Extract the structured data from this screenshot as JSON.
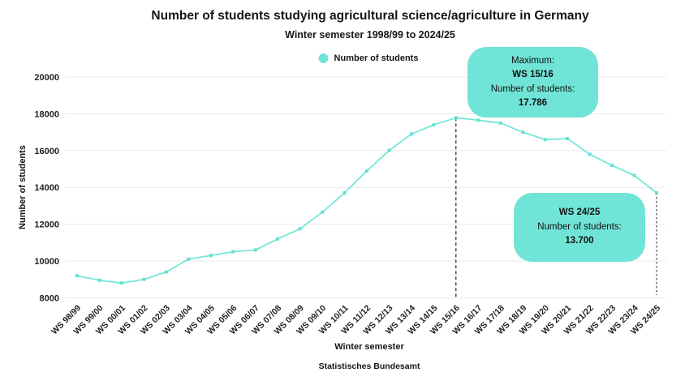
{
  "title": "Number of students studying agricultural science/agriculture in Germany",
  "subtitle": "Winter semester 1998/99 to 2024/25",
  "legend": {
    "label": "Number of students"
  },
  "source": "Statistisches Bundesamt",
  "colors": {
    "accent": "#70E4D6",
    "line": "#76E7DA",
    "marker": "#66E0D2",
    "grid": "#eaeaea",
    "text": "#151515",
    "max_line": "#222222",
    "latest_line": "#929292",
    "background": "#ffffff"
  },
  "annotations": {
    "maximum": {
      "label": "Maximum:",
      "semester": "WS 15/16",
      "students_label": "Number of students:",
      "value": "17.786"
    },
    "latest": {
      "semester": "WS 24/25",
      "students_label": "Number of students:",
      "value": "13.700"
    }
  },
  "chart_data": {
    "type": "line",
    "title": "Number of students studying agricultural science/agriculture in Germany",
    "subtitle": "Winter semester 1998/99 to 2024/25",
    "xlabel": "Winter semester",
    "ylabel": "Number of students",
    "ylim": [
      8000,
      20000
    ],
    "yticks": [
      8000,
      10000,
      12000,
      14000,
      16000,
      18000,
      20000
    ],
    "grid": true,
    "legend_position": "top",
    "categories": [
      "WS 98/99",
      "WS 99/00",
      "WS 00/01",
      "WS 01/02",
      "WS 02/03",
      "WS 03/04",
      "WS 04/05",
      "WS 05/06",
      "WS 06/07",
      "WS 07/08",
      "WS 08/09",
      "WS 09/10",
      "WS 10/11",
      "WS 11/12",
      "WS 12/13",
      "WS 13/14",
      "WS 14/15",
      "WS 15/16",
      "WS 16/17",
      "WS 17/18",
      "WS 18/19",
      "WS 19/20",
      "WS 20/21",
      "WS 21/22",
      "WS 22/23",
      "WS 23/24",
      "WS 24/25"
    ],
    "series": [
      {
        "name": "Number of students",
        "values": [
          9200,
          8950,
          8800,
          9000,
          9400,
          10100,
          10300,
          10500,
          10600,
          11200,
          11750,
          12650,
          13700,
          14900,
          16000,
          16900,
          17400,
          17786,
          17650,
          17500,
          17000,
          16600,
          16650,
          15800,
          15200,
          14650,
          13700
        ]
      }
    ],
    "max_point": {
      "category": "WS 15/16",
      "value": 17786
    },
    "last_point": {
      "category": "WS 24/25",
      "value": 13700
    }
  }
}
